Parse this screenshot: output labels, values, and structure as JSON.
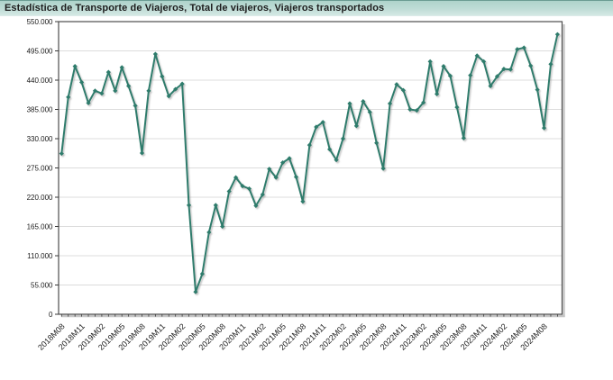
{
  "header": {
    "title": "Estadística de Transporte de Viajeros, Total de viajeros, Viajeros transportados"
  },
  "colors": {
    "line": "#2e7c6c",
    "grid": "#dcdcdc",
    "frame": "#4d4d4d",
    "frame_shadow": "#c6c6c6",
    "tick": "#3a3a3a",
    "label_text": "#1a1a1a",
    "header_bg": "#aed3cb"
  },
  "chart_data": {
    "type": "line",
    "title": "Estadística de Transporte de Viajeros, Total de viajeros, Viajeros transportados",
    "xlabel": "",
    "ylabel": "",
    "legend": "none",
    "grid": "horizontal",
    "marker": "diamond",
    "ylim": [
      0,
      550000
    ],
    "yticks": [
      0,
      55000,
      110000,
      165000,
      220000,
      275000,
      330000,
      385000,
      440000,
      495000,
      550000
    ],
    "ytick_labels": [
      "0",
      "55.000",
      "110.000",
      "165.000",
      "220.000",
      "275.000",
      "330.000",
      "385.000",
      "440.000",
      "495.000",
      "550.000"
    ],
    "xtick_every": 3,
    "categories": [
      "2018M08",
      "2018M09",
      "2018M10",
      "2018M11",
      "2018M12",
      "2019M01",
      "2019M02",
      "2019M03",
      "2019M04",
      "2019M05",
      "2019M06",
      "2019M07",
      "2019M08",
      "2019M09",
      "2019M10",
      "2019M11",
      "2019M12",
      "2020M01",
      "2020M02",
      "2020M03",
      "2020M04",
      "2020M05",
      "2020M06",
      "2020M07",
      "2020M08",
      "2020M09",
      "2020M10",
      "2020M11",
      "2020M12",
      "2021M01",
      "2021M02",
      "2021M03",
      "2021M04",
      "2021M05",
      "2021M06",
      "2021M07",
      "2021M08",
      "2021M09",
      "2021M10",
      "2021M11",
      "2021M12",
      "2022M01",
      "2022M02",
      "2022M03",
      "2022M04",
      "2022M05",
      "2022M06",
      "2022M07",
      "2022M08",
      "2022M09",
      "2022M10",
      "2022M11",
      "2022M12",
      "2023M01",
      "2023M02",
      "2023M03",
      "2023M04",
      "2023M05",
      "2023M06",
      "2023M07",
      "2023M08",
      "2023M09",
      "2023M10",
      "2023M11",
      "2023M12",
      "2024M01",
      "2024M02",
      "2024M03",
      "2024M04",
      "2024M05",
      "2024M06",
      "2024M07",
      "2024M08",
      "2024M09",
      "2024M10"
    ],
    "values": [
      302000,
      408000,
      466000,
      436000,
      397000,
      420000,
      415000,
      455000,
      420000,
      464000,
      429000,
      392000,
      303000,
      420000,
      489000,
      447000,
      410000,
      423000,
      433000,
      205000,
      42000,
      76000,
      154000,
      205000,
      165000,
      231000,
      257000,
      241000,
      236000,
      204000,
      225000,
      273000,
      257000,
      285000,
      293000,
      258000,
      212000,
      318000,
      352000,
      361000,
      310000,
      290000,
      330000,
      396000,
      354000,
      400000,
      380000,
      322000,
      274000,
      396000,
      432000,
      421000,
      385000,
      383000,
      398000,
      475000,
      414000,
      466000,
      448000,
      389000,
      331000,
      449000,
      486000,
      475000,
      429000,
      447000,
      461000,
      460000,
      498000,
      501000,
      467000,
      422000,
      350000,
      470000,
      526000
    ]
  }
}
